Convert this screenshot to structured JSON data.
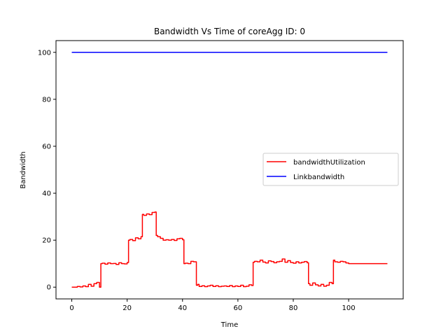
{
  "chart_data": {
    "type": "line",
    "title": "Bandwidth Vs Time of coreAgg ID: 0",
    "xlabel": "Time",
    "ylabel": "Bandwidth",
    "xlim": [
      -5.7,
      119.7
    ],
    "ylim": [
      -5,
      105
    ],
    "xticks": [
      0,
      20,
      40,
      60,
      80,
      100
    ],
    "yticks": [
      0,
      20,
      40,
      60,
      80,
      100
    ],
    "grid": false,
    "legend_position": "center-right",
    "series": [
      {
        "name": "bandwidthUtilization",
        "color": "#ff0000",
        "step": true,
        "x": [
          0,
          2,
          3,
          4,
          5,
          6,
          7,
          8,
          9,
          10,
          10.5,
          11,
          12,
          13,
          14,
          15,
          16,
          17,
          18,
          19,
          20,
          20.5,
          21,
          22,
          23,
          24,
          25,
          25.5,
          26,
          27,
          28,
          29,
          30,
          30.5,
          31,
          32,
          33,
          34,
          35,
          36,
          37,
          38,
          39,
          40,
          40.5,
          41,
          42,
          43,
          44,
          45,
          45.5,
          46,
          47,
          48,
          49,
          50,
          51,
          52,
          53,
          54,
          55,
          56,
          57,
          58,
          59,
          60,
          61,
          62,
          63,
          64,
          65,
          65.5,
          66,
          67,
          68,
          69,
          70,
          71,
          72,
          73,
          74,
          75,
          76,
          77,
          78,
          79,
          80,
          81,
          82,
          83,
          84,
          85,
          85.5,
          86,
          87,
          88,
          89,
          90,
          91,
          92,
          93,
          94,
          94.5,
          95,
          96,
          97,
          98,
          99,
          100,
          101,
          110,
          114
        ],
        "y": [
          0,
          0.3,
          0.1,
          0.5,
          0.2,
          1.2,
          0.4,
          1.5,
          2,
          0,
          10,
          10.2,
          9.8,
          10.3,
          10,
          10.1,
          9.7,
          10.4,
          10,
          9.9,
          10.5,
          20,
          20.3,
          19.8,
          21,
          20.6,
          21.5,
          31,
          30.6,
          31.2,
          30.9,
          31.8,
          32,
          22,
          21.5,
          20.8,
          20,
          20.2,
          20,
          20.3,
          19.9,
          20.6,
          20.8,
          20.2,
          10,
          10.2,
          10,
          11,
          10.8,
          0.8,
          1.2,
          0.3,
          0.6,
          0.2,
          0.5,
          0.8,
          0.3,
          0.6,
          0.2,
          0.4,
          0.5,
          0.3,
          0.7,
          0.2,
          0.5,
          0.3,
          0.8,
          0.2,
          0.4,
          1,
          0.7,
          10.6,
          11,
          10.8,
          11.5,
          10.7,
          10.3,
          11.2,
          10.9,
          10.4,
          10.8,
          11,
          12,
          10.6,
          11.3,
          10.5,
          10.2,
          10.8,
          10.3,
          10.6,
          10.9,
          10.4,
          1.5,
          0.8,
          1.8,
          1,
          0.5,
          1.2,
          0.4,
          0.8,
          2,
          1.5,
          11.5,
          10.8,
          10.6,
          11,
          10.8,
          10.3,
          10,
          10,
          10,
          10
        ]
      },
      {
        "name": "Linkbandwidth",
        "color": "#0000ff",
        "step": false,
        "x": [
          0,
          114
        ],
        "y": [
          100,
          100
        ]
      }
    ]
  }
}
